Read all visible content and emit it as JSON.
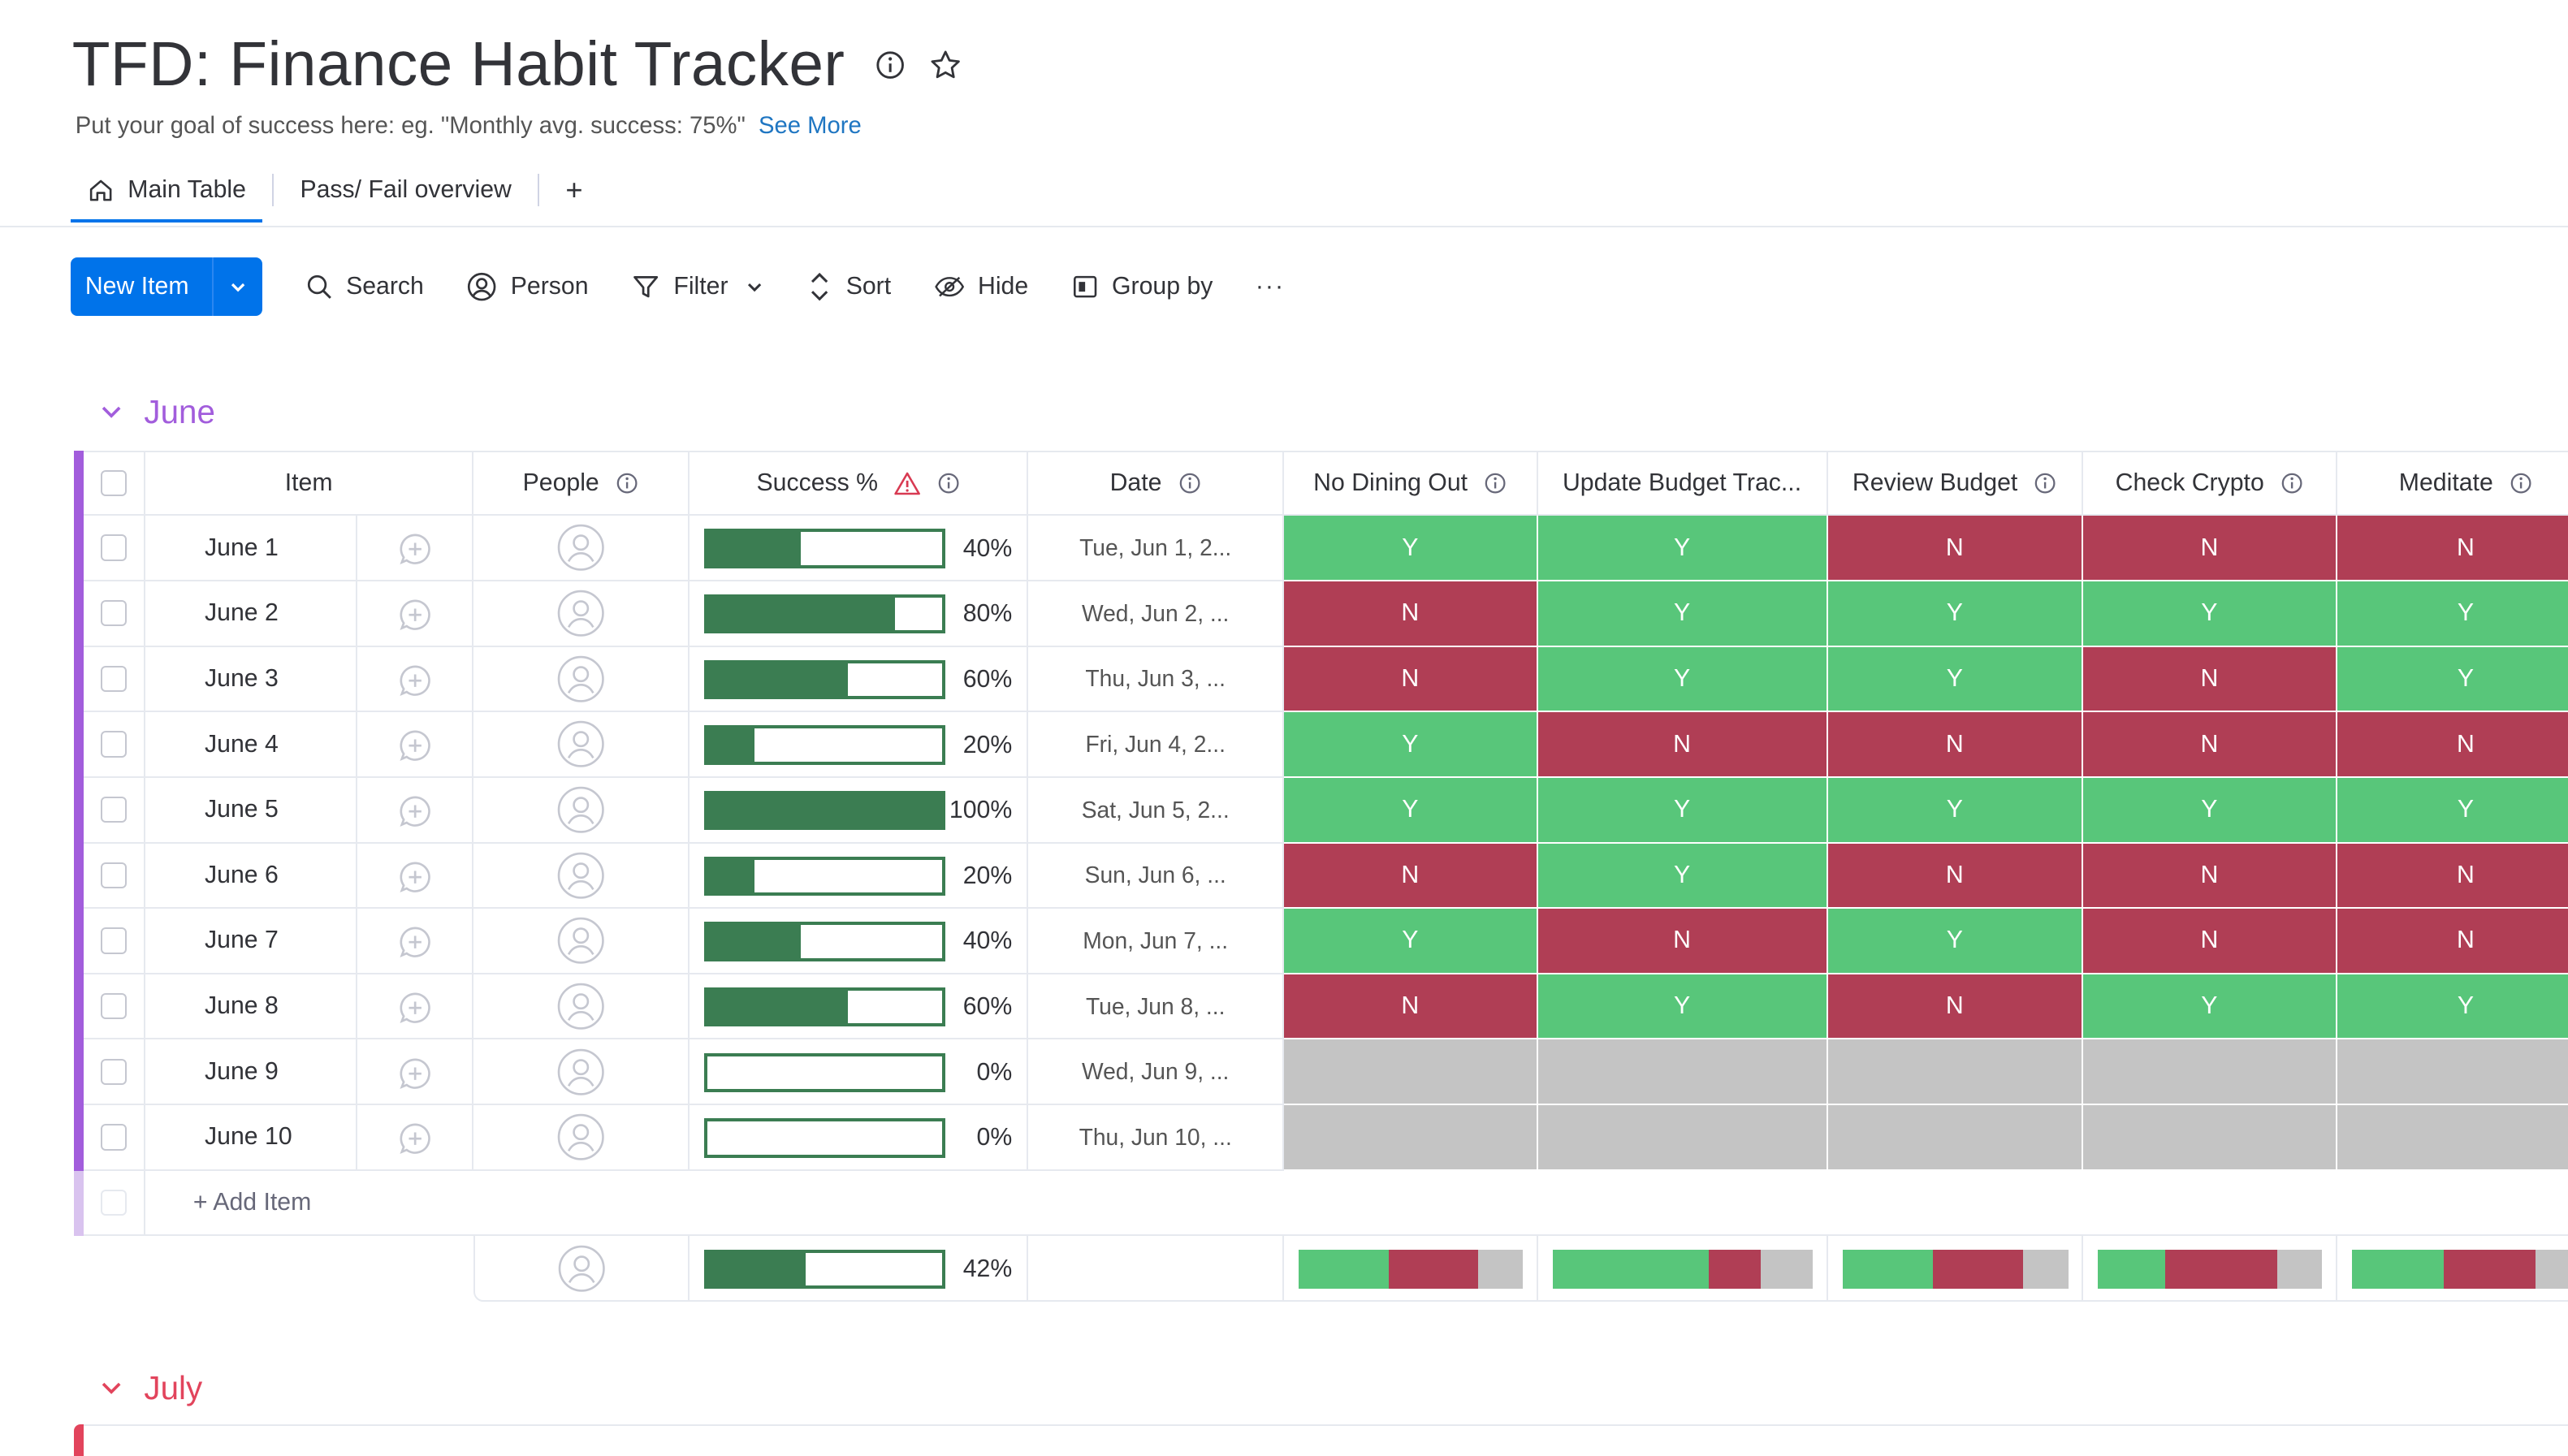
{
  "board": {
    "title": "TFD: Finance Habit Tracker",
    "description": "Put your goal of success here: eg. \"Monthly avg. success: 75%\"",
    "see_more": "See More"
  },
  "tabs": [
    {
      "label": "Main Table",
      "active": true
    },
    {
      "label": "Pass/ Fail overview",
      "active": false
    }
  ],
  "tab_add": "+",
  "toolbar": {
    "new_item": "New Item",
    "search": "Search",
    "person": "Person",
    "filter": "Filter",
    "sort": "Sort",
    "hide": "Hide",
    "group_by": "Group by",
    "more": "···"
  },
  "colors": {
    "primary": "#0073ea",
    "group_june": "#a25ddc",
    "group_july": "#e2445c",
    "done_y": "#58c67a",
    "fail_n": "#b03e55",
    "empty": "#c4c4c4",
    "progress": "#3b7d52"
  },
  "groups": [
    {
      "name": "June",
      "columns": [
        "Item",
        "People",
        "Success %",
        "Date",
        "No Dining Out",
        "Update Budget Trac...",
        "Review Budget",
        "Check Crypto",
        "Meditate"
      ],
      "rows": [
        {
          "item": "June 1",
          "success": 40,
          "success_label": "40%",
          "date": "Tue, Jun 1, 2...",
          "habits": [
            "Y",
            "Y",
            "N",
            "N",
            "N"
          ]
        },
        {
          "item": "June 2",
          "success": 80,
          "success_label": "80%",
          "date": "Wed, Jun 2, ...",
          "habits": [
            "N",
            "Y",
            "Y",
            "Y",
            "Y"
          ]
        },
        {
          "item": "June 3",
          "success": 60,
          "success_label": "60%",
          "date": "Thu, Jun 3, ...",
          "habits": [
            "N",
            "Y",
            "Y",
            "N",
            "Y"
          ]
        },
        {
          "item": "June 4",
          "success": 20,
          "success_label": "20%",
          "date": "Fri, Jun 4, 2...",
          "habits": [
            "Y",
            "N",
            "N",
            "N",
            "N"
          ]
        },
        {
          "item": "June 5",
          "success": 100,
          "success_label": "100%",
          "date": "Sat, Jun 5, 2...",
          "habits": [
            "Y",
            "Y",
            "Y",
            "Y",
            "Y"
          ]
        },
        {
          "item": "June 6",
          "success": 20,
          "success_label": "20%",
          "date": "Sun, Jun 6, ...",
          "habits": [
            "N",
            "Y",
            "N",
            "N",
            "N"
          ]
        },
        {
          "item": "June 7",
          "success": 40,
          "success_label": "40%",
          "date": "Mon, Jun 7, ...",
          "habits": [
            "Y",
            "N",
            "Y",
            "N",
            "N"
          ]
        },
        {
          "item": "June 8",
          "success": 60,
          "success_label": "60%",
          "date": "Tue, Jun 8, ...",
          "habits": [
            "N",
            "Y",
            "N",
            "Y",
            "Y"
          ]
        },
        {
          "item": "June 9",
          "success": 0,
          "success_label": "0%",
          "date": "Wed, Jun 9, ...",
          "habits": [
            "",
            "",
            "",
            "",
            ""
          ]
        },
        {
          "item": "June 10",
          "success": 0,
          "success_label": "0%",
          "date": "Thu, Jun 10, ...",
          "habits": [
            "",
            "",
            "",
            "",
            ""
          ]
        }
      ],
      "add_item": "+ Add Item",
      "summary": {
        "success": 42,
        "success_label": "42%",
        "habits": [
          {
            "y": 0.4,
            "n": 0.4,
            "empty": 0.2
          },
          {
            "y": 0.6,
            "n": 0.2,
            "empty": 0.2
          },
          {
            "y": 0.4,
            "n": 0.4,
            "empty": 0.2
          },
          {
            "y": 0.3,
            "n": 0.5,
            "empty": 0.2
          },
          {
            "y": 0.4,
            "n": 0.4,
            "empty": 0.2
          }
        ]
      }
    },
    {
      "name": "July"
    }
  ]
}
